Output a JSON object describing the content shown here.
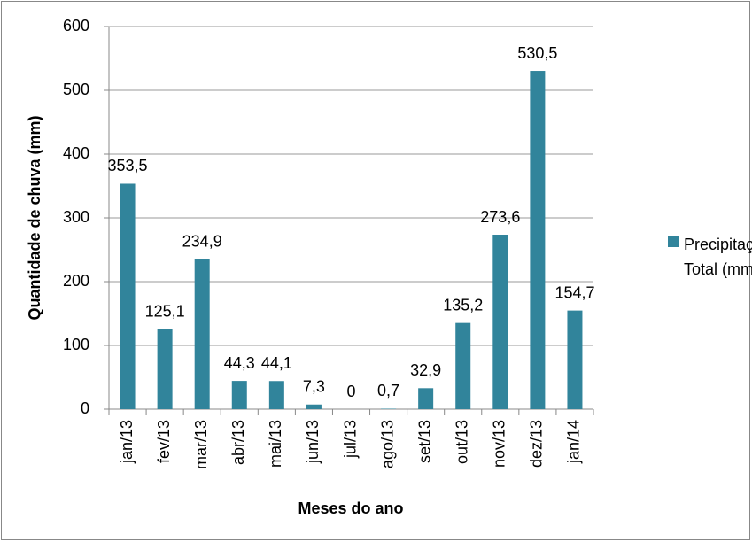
{
  "chart_data": {
    "type": "bar",
    "x_label": "Meses do ano",
    "y_label": "Quantidade de chuva (mm)",
    "categories": [
      "jan/13",
      "fev/13",
      "mar/13",
      "abr/13",
      "mai/13",
      "jun/13",
      "jul/13",
      "ago/13",
      "set/13",
      "out/13",
      "nov/13",
      "dez/13",
      "jan/14"
    ],
    "series": [
      {
        "name": "Precipitação Total (mm)",
        "color": "#31849b",
        "values": [
          353.5,
          125.1,
          234.9,
          44.3,
          44.1,
          7.3,
          0,
          0.7,
          32.9,
          135.2,
          273.6,
          530.5,
          154.7
        ],
        "value_labels": [
          "353,5",
          "125,1",
          "234,9",
          "44,3",
          "44,1",
          "7,3",
          "0",
          "0,7",
          "32,9",
          "135,2",
          "273,6",
          "530,5",
          "154,7"
        ]
      }
    ],
    "ylim": [
      0,
      600
    ],
    "yticks": [
      0,
      100,
      200,
      300,
      400,
      500,
      600
    ],
    "grid": true,
    "legend": "right"
  }
}
